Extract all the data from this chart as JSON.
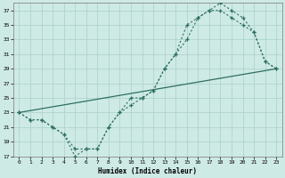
{
  "xlabel": "Humidex (Indice chaleur)",
  "background_color": "#ceeae5",
  "grid_color": "#afd4cf",
  "line_color": "#2d6e62",
  "ylim": [
    17,
    38
  ],
  "xlim": [
    -0.5,
    23.5
  ],
  "yticks": [
    17,
    19,
    21,
    23,
    25,
    27,
    29,
    31,
    33,
    35,
    37
  ],
  "xticks": [
    0,
    1,
    2,
    3,
    4,
    5,
    6,
    7,
    8,
    9,
    10,
    11,
    12,
    13,
    14,
    15,
    16,
    17,
    18,
    19,
    20,
    21,
    22,
    23
  ],
  "curve1_x": [
    0,
    1,
    2,
    3,
    4,
    5,
    6,
    7,
    8,
    9,
    10,
    11,
    12,
    13,
    14,
    15,
    16,
    17,
    18,
    19,
    20,
    21,
    22,
    23
  ],
  "curve1_y": [
    23,
    22,
    22,
    21,
    20,
    18,
    18,
    18,
    21,
    23,
    24,
    25,
    26,
    29,
    31,
    33,
    36,
    37,
    37,
    36,
    35,
    34,
    30,
    29
  ],
  "curve2_x": [
    0,
    1,
    2,
    3,
    4,
    5,
    6,
    7,
    8,
    9,
    10,
    11,
    12,
    13,
    14,
    15,
    16,
    17,
    18,
    19,
    20,
    21,
    22,
    23
  ],
  "curve2_y": [
    23,
    22,
    22,
    21,
    20,
    17,
    18,
    18,
    21,
    23,
    25,
    25,
    26,
    29,
    31,
    35,
    36,
    37,
    38,
    37,
    36,
    34,
    30,
    29
  ],
  "curve3_x": [
    0,
    23
  ],
  "curve3_y": [
    23,
    29
  ]
}
